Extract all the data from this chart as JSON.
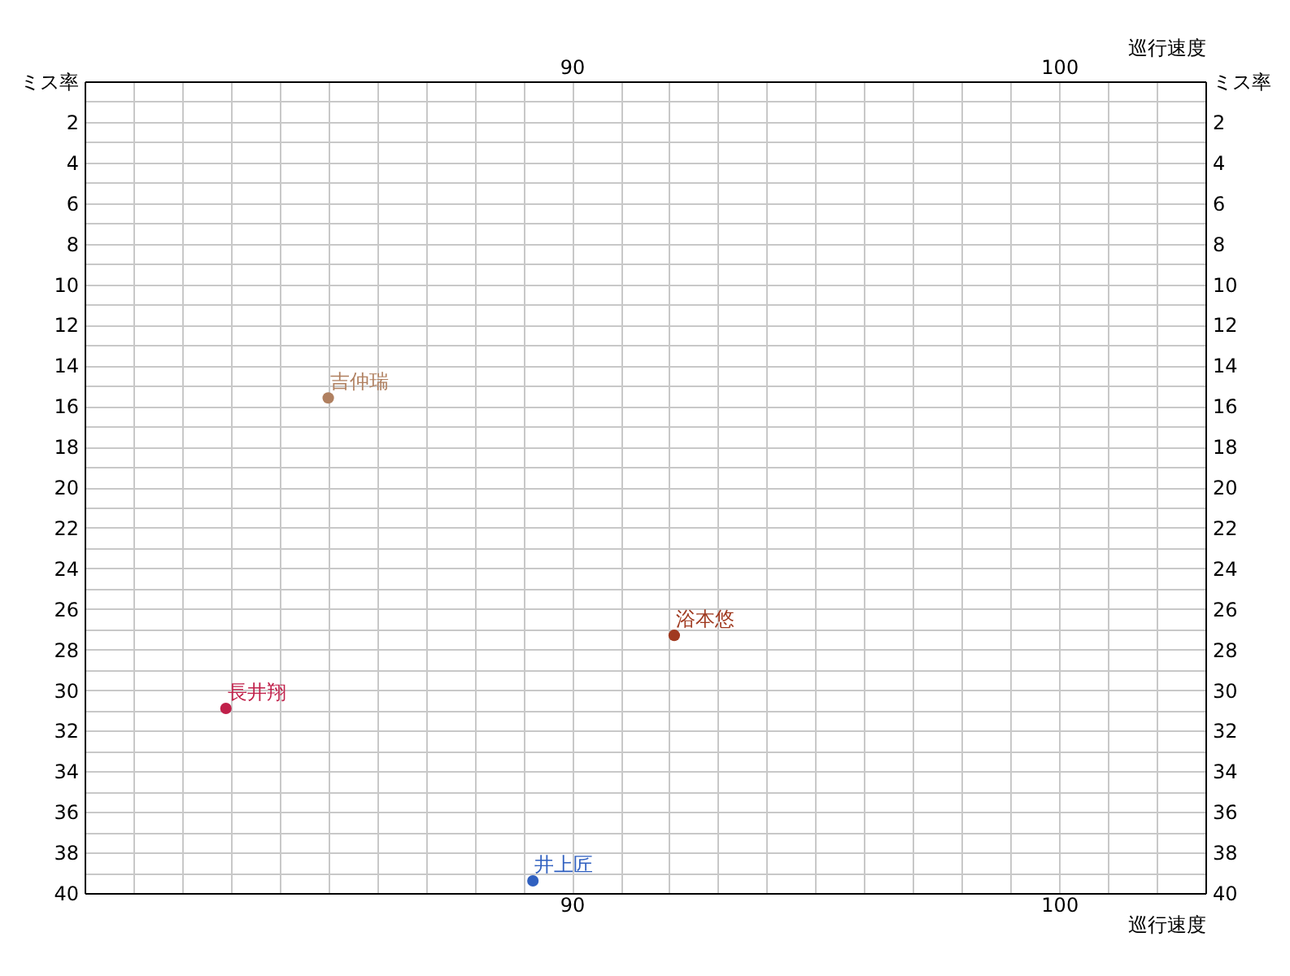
{
  "chart_data": {
    "type": "scatter",
    "xlabel": "巡行速度",
    "x2label": "巡行速度",
    "ylabel": "ミス率",
    "y2label": "ミス率",
    "xlim": [
      80,
      103
    ],
    "x2lim": [
      80,
      103
    ],
    "xticks": [
      {
        "value": 80,
        "label": null
      },
      {
        "value": 81,
        "label": null
      },
      {
        "value": 82,
        "label": null
      },
      {
        "value": 83,
        "label": null
      },
      {
        "value": 84,
        "label": null
      },
      {
        "value": 85,
        "label": null
      },
      {
        "value": 86,
        "label": null
      },
      {
        "value": 87,
        "label": null
      },
      {
        "value": 88,
        "label": null
      },
      {
        "value": 89,
        "label": null
      },
      90,
      {
        "value": 91,
        "label": null
      },
      {
        "value": 92,
        "label": null
      },
      {
        "value": 93,
        "label": null
      },
      {
        "value": 94,
        "label": null
      },
      {
        "value": 95,
        "label": null
      },
      {
        "value": 96,
        "label": null
      },
      {
        "value": 97,
        "label": null
      },
      {
        "value": 98,
        "label": null
      },
      {
        "value": 99,
        "label": null
      },
      100,
      {
        "value": 101,
        "label": null
      },
      {
        "value": 102,
        "label": null
      },
      {
        "value": 103,
        "label": null
      }
    ],
    "x2ticks": [
      {
        "value": 80,
        "label": null
      },
      {
        "value": 81,
        "label": null
      },
      {
        "value": 82,
        "label": null
      },
      {
        "value": 83,
        "label": null
      },
      {
        "value": 84,
        "label": null
      },
      {
        "value": 85,
        "label": null
      },
      {
        "value": 86,
        "label": null
      },
      {
        "value": 87,
        "label": null
      },
      {
        "value": 88,
        "label": null
      },
      {
        "value": 89,
        "label": null
      },
      90,
      {
        "value": 91,
        "label": null
      },
      {
        "value": 92,
        "label": null
      },
      {
        "value": 93,
        "label": null
      },
      {
        "value": 94,
        "label": null
      },
      {
        "value": 95,
        "label": null
      },
      {
        "value": 96,
        "label": null
      },
      {
        "value": 97,
        "label": null
      },
      {
        "value": 98,
        "label": null
      },
      {
        "value": 99,
        "label": null
      },
      100,
      {
        "value": 101,
        "label": null
      },
      {
        "value": 102,
        "label": null
      },
      {
        "value": 103,
        "label": null
      }
    ],
    "ylim": [
      40,
      0
    ],
    "y2lim": [
      40,
      0
    ],
    "yticks": [
      {
        "value": 1,
        "label": null
      },
      2,
      {
        "value": 3,
        "label": null
      },
      4,
      {
        "value": 5,
        "label": null
      },
      6,
      {
        "value": 7,
        "label": null
      },
      8,
      {
        "value": 9,
        "label": null
      },
      10,
      {
        "value": 11,
        "label": null
      },
      12,
      {
        "value": 13,
        "label": null
      },
      14,
      {
        "value": 15,
        "label": null
      },
      16,
      {
        "value": 17,
        "label": null
      },
      18,
      {
        "value": 19,
        "label": null
      },
      20,
      {
        "value": 21,
        "label": null
      },
      22,
      {
        "value": 23,
        "label": null
      },
      24,
      {
        "value": 25,
        "label": null
      },
      26,
      {
        "value": 27,
        "label": null
      },
      28,
      {
        "value": 29,
        "label": null
      },
      30,
      {
        "value": 31,
        "label": null
      },
      32,
      {
        "value": 33,
        "label": null
      },
      34,
      {
        "value": 35,
        "label": null
      },
      36,
      {
        "value": 37,
        "label": null
      },
      38,
      {
        "value": 39,
        "label": null
      },
      40
    ],
    "y2ticks": [
      {
        "value": 1,
        "label": null
      },
      2,
      {
        "value": 3,
        "label": null
      },
      4,
      {
        "value": 5,
        "label": null
      },
      6,
      {
        "value": 7,
        "label": null
      },
      8,
      {
        "value": 9,
        "label": null
      },
      10,
      {
        "value": 11,
        "label": null
      },
      12,
      {
        "value": 13,
        "label": null
      },
      14,
      {
        "value": 15,
        "label": null
      },
      16,
      {
        "value": 17,
        "label": null
      },
      18,
      {
        "value": 19,
        "label": null
      },
      20,
      {
        "value": 21,
        "label": null
      },
      22,
      {
        "value": 23,
        "label": null
      },
      24,
      {
        "value": 25,
        "label": null
      },
      26,
      {
        "value": 27,
        "label": null
      },
      28,
      {
        "value": 29,
        "label": null
      },
      30,
      {
        "value": 31,
        "label": null
      },
      32,
      {
        "value": 33,
        "label": null
      },
      34,
      {
        "value": 35,
        "label": null
      },
      36,
      {
        "value": 37,
        "label": null
      },
      38,
      {
        "value": 39,
        "label": null
      },
      40
    ],
    "grid": true,
    "marker": "circle",
    "series": [
      {
        "name": "吉仲瑞",
        "color": "#b08060",
        "x": [
          85.0
        ],
        "values": [
          15.6
        ]
      },
      {
        "name": "浴本悠",
        "color": "#a03a20",
        "x": [
          92.1
        ],
        "values": [
          27.3
        ]
      },
      {
        "name": "長井翔",
        "color": "#c0204a",
        "x": [
          82.9
        ],
        "values": [
          30.9
        ]
      },
      {
        "name": "井上匠",
        "color": "#3060c0",
        "x": [
          89.2
        ],
        "values": [
          39.4
        ]
      }
    ]
  }
}
